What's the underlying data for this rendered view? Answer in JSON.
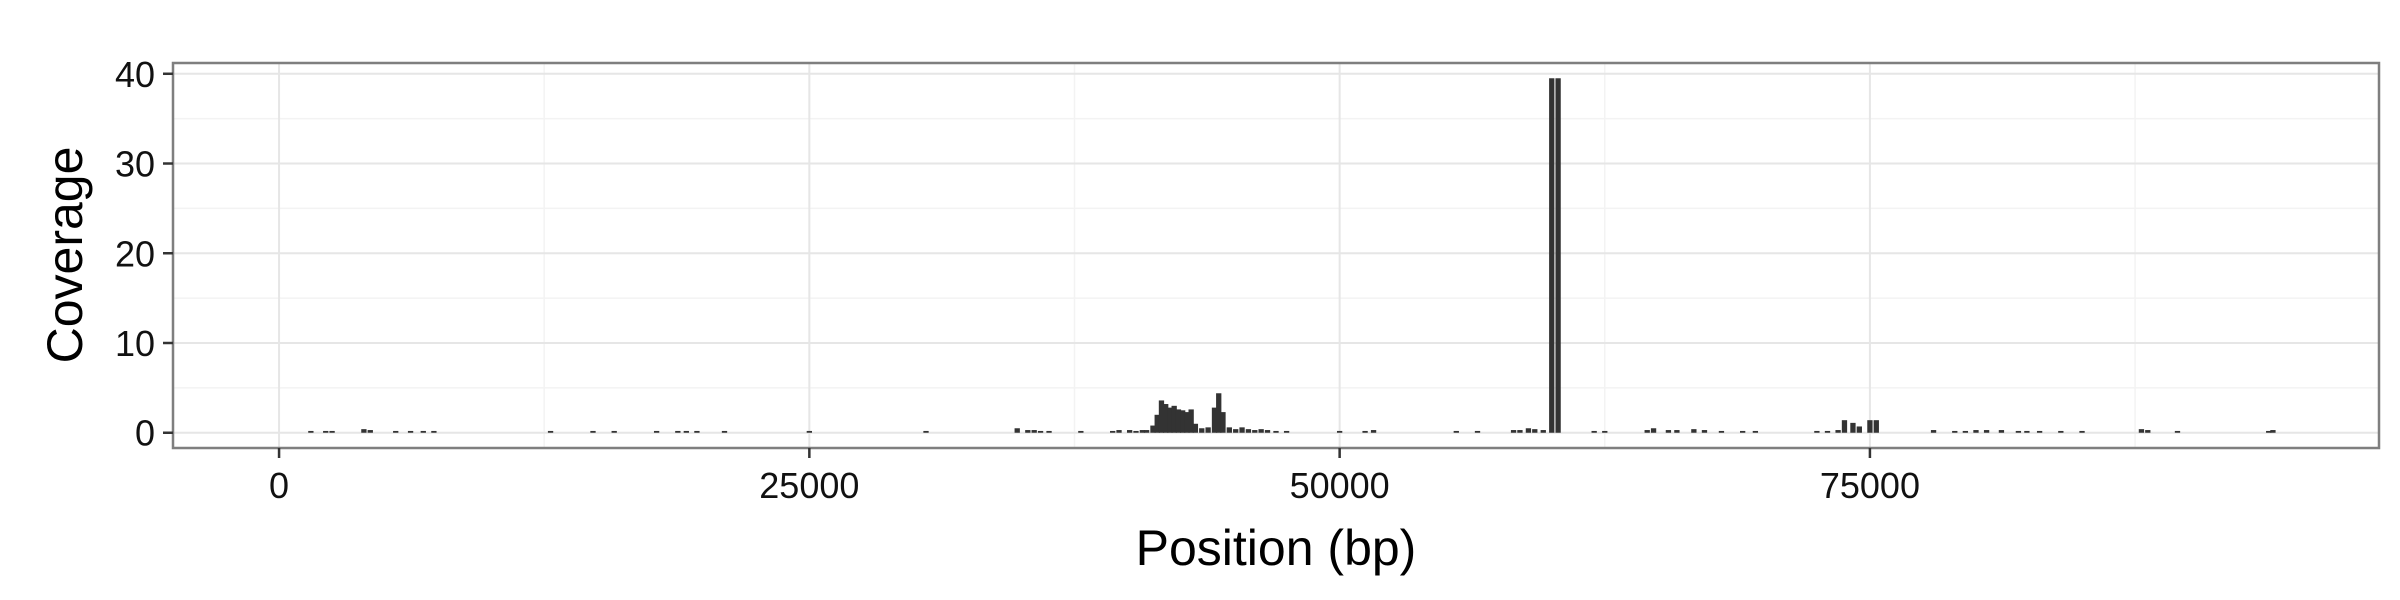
{
  "chart_data": {
    "type": "bar",
    "xlabel": "Position (bp)",
    "ylabel": "Coverage",
    "xlim": [
      -5000,
      99000
    ],
    "ylim": [
      -1.7,
      41.2
    ],
    "xticks": [
      0,
      25000,
      50000,
      75000
    ],
    "yticks": [
      0,
      10,
      20,
      30,
      40
    ],
    "grid": true,
    "legend": "none",
    "colors": {
      "bar": "#333333",
      "panel_border": "#7f7f7f",
      "axis_tick": "#333333"
    },
    "x": [
      1500,
      2200,
      2500,
      4000,
      4300,
      5500,
      6200,
      6800,
      7300,
      12800,
      14800,
      15800,
      17800,
      18800,
      19200,
      19700,
      21000,
      25000,
      30500,
      34800,
      35300,
      35600,
      35900,
      36300,
      37800,
      39300,
      39600,
      40100,
      40400,
      40700,
      40900,
      41200,
      41400,
      41600,
      41800,
      42000,
      42200,
      42400,
      42600,
      42800,
      43000,
      43200,
      43500,
      43800,
      44100,
      44300,
      44500,
      44800,
      45100,
      45400,
      45700,
      46000,
      46300,
      46600,
      47000,
      47500,
      50000,
      51200,
      51600,
      55500,
      56500,
      58200,
      58500,
      58900,
      59200,
      59600,
      60000,
      60300,
      62000,
      62500,
      64500,
      64800,
      65500,
      65900,
      66700,
      67200,
      68000,
      69000,
      69600,
      72500,
      73000,
      73500,
      73800,
      74200,
      74500,
      75000,
      75300,
      78000,
      79000,
      79500,
      80000,
      80500,
      81200,
      82000,
      82400,
      83000,
      84000,
      85000,
      87800,
      88100,
      89500,
      93800,
      94000
    ],
    "values": [
      0.2,
      0.2,
      0.2,
      0.4,
      0.3,
      0.2,
      0.2,
      0.2,
      0.2,
      0.2,
      0.2,
      0.2,
      0.2,
      0.2,
      0.2,
      0.2,
      0.2,
      0.2,
      0.2,
      0.5,
      0.3,
      0.3,
      0.2,
      0.2,
      0.2,
      0.2,
      0.3,
      0.3,
      0.2,
      0.3,
      0.3,
      0.8,
      2.0,
      3.6,
      3.2,
      2.8,
      3.0,
      2.6,
      2.5,
      2.3,
      2.6,
      1.0,
      0.5,
      0.6,
      2.8,
      4.4,
      2.3,
      0.6,
      0.4,
      0.6,
      0.4,
      0.3,
      0.4,
      0.3,
      0.2,
      0.2,
      0.2,
      0.2,
      0.3,
      0.2,
      0.2,
      0.3,
      0.3,
      0.5,
      0.4,
      0.3,
      39.5,
      39.5,
      0.2,
      0.2,
      0.3,
      0.5,
      0.3,
      0.3,
      0.4,
      0.3,
      0.2,
      0.2,
      0.2,
      0.2,
      0.2,
      0.3,
      1.4,
      1.1,
      0.7,
      1.4,
      1.4,
      0.3,
      0.2,
      0.2,
      0.3,
      0.3,
      0.3,
      0.2,
      0.2,
      0.2,
      0.2,
      0.2,
      0.4,
      0.3,
      0.2,
      0.2,
      0.3
    ]
  }
}
